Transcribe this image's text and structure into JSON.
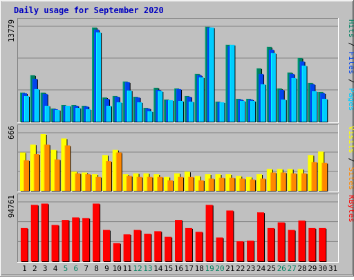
{
  "chart_data": [
    {
      "type": "bar",
      "title": "Daily usage for September 2020",
      "categories": [
        "1",
        "2",
        "3",
        "4",
        "5",
        "6",
        "7",
        "8",
        "9",
        "10",
        "11",
        "12",
        "13",
        "14",
        "15",
        "16",
        "17",
        "18",
        "19",
        "20",
        "21",
        "22",
        "23",
        "24",
        "25",
        "26",
        "27",
        "28",
        "29",
        "30",
        "31"
      ],
      "weekend_days": [
        "5",
        "6",
        "12",
        "13",
        "19",
        "20",
        "26",
        "27"
      ],
      "y_max_label": "13779",
      "ylim": [
        0,
        13779
      ],
      "legend": [
        {
          "label": "Pages",
          "color": "#00ccff"
        },
        {
          "label": "Files",
          "color": "#0044ee"
        },
        {
          "label": "Hits",
          "color": "#008060"
        }
      ],
      "legend_separator": " / ",
      "series": [
        {
          "name": "Hits",
          "color": "#008060",
          "values": [
            4200,
            6700,
            4200,
            1900,
            2400,
            2400,
            2300,
            13600,
            3500,
            3700,
            5800,
            3600,
            2000,
            4900,
            3200,
            4800,
            3700,
            6900,
            13700,
            2900,
            11100,
            3300,
            3300,
            7700,
            10800,
            4800,
            7100,
            9200,
            5600,
            4300,
            null
          ]
        },
        {
          "name": "Files",
          "color": "#0044ee",
          "values": [
            4100,
            6200,
            4000,
            1800,
            2300,
            2300,
            2200,
            13300,
            3300,
            3600,
            5700,
            3500,
            1900,
            4600,
            3100,
            4700,
            3600,
            6700,
            13600,
            2800,
            10900,
            3200,
            3200,
            6900,
            10400,
            4600,
            6900,
            8700,
            5400,
            4100,
            null
          ]
        },
        {
          "name": "Pages",
          "color": "#00ccff",
          "values": [
            3700,
            4700,
            2300,
            1700,
            2300,
            2000,
            1800,
            12900,
            2300,
            2800,
            4500,
            2800,
            1500,
            4400,
            3100,
            3000,
            2900,
            6400,
            13600,
            2800,
            11100,
            3000,
            3000,
            5400,
            9900,
            3200,
            6300,
            8100,
            4400,
            3300,
            null
          ]
        }
      ]
    },
    {
      "type": "bar",
      "categories": [
        "1",
        "2",
        "3",
        "4",
        "5",
        "6",
        "7",
        "8",
        "9",
        "10",
        "11",
        "12",
        "13",
        "14",
        "15",
        "16",
        "17",
        "18",
        "19",
        "20",
        "21",
        "22",
        "23",
        "24",
        "25",
        "26",
        "27",
        "28",
        "29",
        "30",
        "31"
      ],
      "y_max_label": "666",
      "ylim": [
        0,
        666
      ],
      "legend": [
        {
          "label": "Sites",
          "color": "#ff8800"
        },
        {
          "label": "Visits",
          "color": "#ffff00"
        }
      ],
      "legend_separator": " / ",
      "series": [
        {
          "name": "Visits",
          "color": "#ffff00",
          "values": [
            440,
            530,
            650,
            470,
            600,
            220,
            210,
            190,
            410,
            470,
            190,
            200,
            200,
            190,
            160,
            200,
            220,
            170,
            190,
            190,
            190,
            170,
            160,
            190,
            250,
            250,
            250,
            250,
            410,
            450,
            null
          ]
        },
        {
          "name": "Sites",
          "color": "#ff8800",
          "values": [
            350,
            420,
            530,
            360,
            520,
            200,
            190,
            160,
            340,
            440,
            170,
            160,
            160,
            160,
            120,
            160,
            160,
            120,
            140,
            150,
            150,
            140,
            130,
            140,
            210,
            210,
            200,
            200,
            330,
            320,
            null
          ]
        }
      ]
    },
    {
      "type": "bar",
      "categories": [
        "1",
        "2",
        "3",
        "4",
        "5",
        "6",
        "7",
        "8",
        "9",
        "10",
        "11",
        "12",
        "13",
        "14",
        "15",
        "16",
        "17",
        "18",
        "19",
        "20",
        "21",
        "22",
        "23",
        "24",
        "25",
        "26",
        "27",
        "28",
        "29",
        "30",
        "31"
      ],
      "y_max_label": "94761",
      "ylim": [
        0,
        94761
      ],
      "legend": [
        {
          "label": "KBytes",
          "color": "#ff0000"
        }
      ],
      "legend_separator": "",
      "series": [
        {
          "name": "KBytes",
          "color": "#ff0000",
          "values": [
            53000,
            90000,
            92000,
            58000,
            66000,
            70000,
            69000,
            92000,
            50000,
            29000,
            43000,
            50000,
            44000,
            48000,
            39000,
            66000,
            53000,
            47000,
            90000,
            38000,
            81000,
            32000,
            33000,
            78000,
            53000,
            62000,
            50000,
            65000,
            53000,
            53000,
            null
          ]
        }
      ]
    }
  ]
}
